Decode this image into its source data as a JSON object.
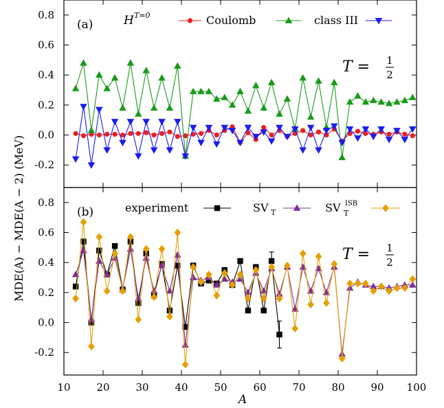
{
  "figure": {
    "ylabel": "MDE(A) − MDE(A − 2) (MeV)",
    "xlabel": "A",
    "x_ticks": [
      "10",
      "20",
      "30",
      "40",
      "50",
      "60",
      "70",
      "80",
      "90",
      "100"
    ]
  },
  "chart_data": [
    {
      "type": "line",
      "panel_label": "(a)",
      "legend_title": "H^{T=0}",
      "legend_title_main": "H",
      "legend_title_sup": "T=0",
      "legend_placement": "top",
      "annotation": "T = 1/2",
      "annotation_lhs": "T =",
      "annotation_num": "1",
      "annotation_den": "2",
      "xlim": [
        10,
        100
      ],
      "ylim": [
        -0.35,
        0.9
      ],
      "y_ticks": [
        "-0.2",
        "0.0",
        "0.2",
        "0.4",
        "0.6",
        "0.8"
      ],
      "y_tick_values": [
        -0.2,
        0.0,
        0.2,
        0.4,
        0.6,
        0.8
      ],
      "x": [
        13,
        15,
        17,
        19,
        21,
        23,
        25,
        27,
        29,
        31,
        33,
        35,
        37,
        39,
        41,
        43,
        45,
        47,
        49,
        51,
        53,
        55,
        57,
        59,
        61,
        63,
        65,
        67,
        69,
        71,
        73,
        75,
        77,
        79,
        81,
        83,
        85,
        87,
        89,
        91,
        93,
        95,
        97,
        99
      ],
      "series": [
        {
          "name": "Coulomb",
          "color": "#e8201e",
          "marker": "circle",
          "values": [
            0.01,
            -0.005,
            0.005,
            0.0,
            0.005,
            0.005,
            0.0,
            0.01,
            0.01,
            0.015,
            0.0,
            0.01,
            0.02,
            -0.01,
            -0.005,
            0.005,
            0.01,
            0.03,
            0.0,
            0.03,
            0.055,
            -0.05,
            0.015,
            -0.03,
            0.05,
            0.0,
            0.03,
            -0.01,
            0.01,
            0.03,
            0.0,
            0.02,
            0.0,
            0.04,
            -0.04,
            0.01,
            0.025,
            0.01,
            0.005,
            0.02,
            0.005,
            0.02,
            0.005,
            -0.005
          ]
        },
        {
          "name": "class III",
          "color": "#1a9a1a",
          "marker": "triangle-up",
          "values": [
            0.31,
            0.48,
            0.03,
            0.4,
            0.31,
            0.38,
            0.18,
            0.48,
            0.14,
            0.43,
            0.18,
            0.38,
            0.18,
            0.46,
            -0.14,
            0.29,
            0.29,
            0.29,
            0.24,
            0.25,
            0.2,
            0.29,
            0.16,
            0.33,
            0.18,
            0.35,
            0.14,
            0.24,
            0.04,
            0.38,
            0.12,
            0.36,
            0.05,
            0.35,
            -0.15,
            0.22,
            0.26,
            0.22,
            0.23,
            0.22,
            0.21,
            0.22,
            0.23,
            0.25
          ]
        },
        {
          "name": "",
          "color": "#1b1bf0",
          "marker": "triangle-down",
          "values": [
            -0.16,
            0.19,
            -0.2,
            0.17,
            -0.1,
            0.09,
            -0.05,
            0.09,
            -0.14,
            0.09,
            -0.1,
            0.09,
            -0.1,
            0.09,
            -0.14,
            0.05,
            -0.05,
            0.05,
            -0.06,
            0.05,
            0.03,
            -0.05,
            0.05,
            -0.01,
            0.02,
            -0.04,
            0.05,
            -0.01,
            0.04,
            -0.1,
            0.05,
            -0.1,
            0.03,
            0.06,
            -0.05,
            0.04,
            -0.02,
            0.04,
            -0.01,
            0.04,
            -0.03,
            0.03,
            -0.03,
            0.04
          ]
        }
      ]
    },
    {
      "type": "line",
      "panel_label": "(b)",
      "legend_placement": "top",
      "annotation": "T = 1/2",
      "annotation_lhs": "T =",
      "annotation_num": "1",
      "annotation_den": "2",
      "xlim": [
        10,
        100
      ],
      "ylim": [
        -0.35,
        0.9
      ],
      "y_ticks": [
        "-0.2",
        "0.0",
        "0.2",
        "0.4",
        "0.6",
        "0.8"
      ],
      "y_tick_values": [
        -0.2,
        0.0,
        0.2,
        0.4,
        0.6,
        0.8
      ],
      "series": [
        {
          "name": "experiment",
          "color": "#000000",
          "marker": "square",
          "x": [
            13,
            15,
            17,
            19,
            21,
            23,
            25,
            27,
            29,
            31,
            33,
            35,
            37,
            39,
            41,
            43,
            45,
            47,
            49,
            51,
            53,
            55,
            57,
            59,
            61,
            63,
            65
          ],
          "values": [
            0.24,
            0.54,
            0.0,
            0.48,
            0.32,
            0.51,
            0.22,
            0.54,
            0.13,
            0.46,
            0.18,
            0.39,
            0.08,
            0.38,
            -0.03,
            0.38,
            0.26,
            0.28,
            0.26,
            0.35,
            0.25,
            0.41,
            0.08,
            0.37,
            0.08,
            0.41,
            -0.08
          ],
          "error_x": [
            63,
            65
          ],
          "error_lo": [
            0.35,
            -0.17
          ],
          "error_hi": [
            0.47,
            0.01
          ]
        },
        {
          "name": "SV_T",
          "name_main": "SV",
          "name_sub": "T",
          "color": "#7b2f9b",
          "marker": "triangle-up",
          "x": [
            13,
            15,
            17,
            19,
            21,
            23,
            25,
            27,
            29,
            31,
            33,
            35,
            37,
            39,
            41,
            43,
            45,
            47,
            49,
            51,
            53,
            55,
            57,
            59,
            61,
            63,
            65,
            67,
            69,
            71,
            73,
            75,
            77,
            79,
            81,
            83,
            85,
            87,
            89,
            91,
            93,
            95,
            97,
            99
          ],
          "values": [
            0.32,
            0.48,
            0.02,
            0.41,
            0.32,
            0.43,
            0.22,
            0.49,
            0.16,
            0.43,
            0.21,
            0.38,
            0.21,
            0.45,
            -0.15,
            0.3,
            0.28,
            0.3,
            0.25,
            0.29,
            0.27,
            0.29,
            0.2,
            0.33,
            0.21,
            0.36,
            0.19,
            0.37,
            0.09,
            0.37,
            0.21,
            0.36,
            0.2,
            0.37,
            -0.21,
            0.23,
            0.27,
            0.25,
            0.24,
            0.24,
            0.23,
            0.24,
            0.25,
            0.25
          ]
        },
        {
          "name": "SV_T^ISB",
          "name_main": "SV",
          "name_sub": "T",
          "name_sup": "ISB",
          "color": "#e69f00",
          "marker": "diamond",
          "x": [
            13,
            15,
            17,
            19,
            21,
            23,
            25,
            27,
            29,
            31,
            33,
            35,
            37,
            39,
            41,
            43,
            45,
            47,
            49,
            51,
            53,
            55,
            57,
            59,
            61,
            63,
            65,
            67,
            69,
            71,
            73,
            75,
            77,
            79,
            81,
            83,
            85,
            87,
            89,
            91,
            93,
            95,
            97,
            99
          ],
          "values": [
            0.16,
            0.67,
            -0.16,
            0.57,
            0.21,
            0.46,
            0.21,
            0.57,
            0.02,
            0.49,
            0.17,
            0.49,
            0.04,
            0.6,
            -0.28,
            0.37,
            0.27,
            0.32,
            0.18,
            0.33,
            0.25,
            0.32,
            0.16,
            0.35,
            0.16,
            0.37,
            0.16,
            0.38,
            -0.04,
            0.46,
            0.12,
            0.44,
            0.13,
            0.39,
            -0.24,
            0.26,
            0.26,
            0.26,
            0.21,
            0.24,
            0.21,
            0.23,
            0.23,
            0.29
          ]
        }
      ]
    }
  ]
}
